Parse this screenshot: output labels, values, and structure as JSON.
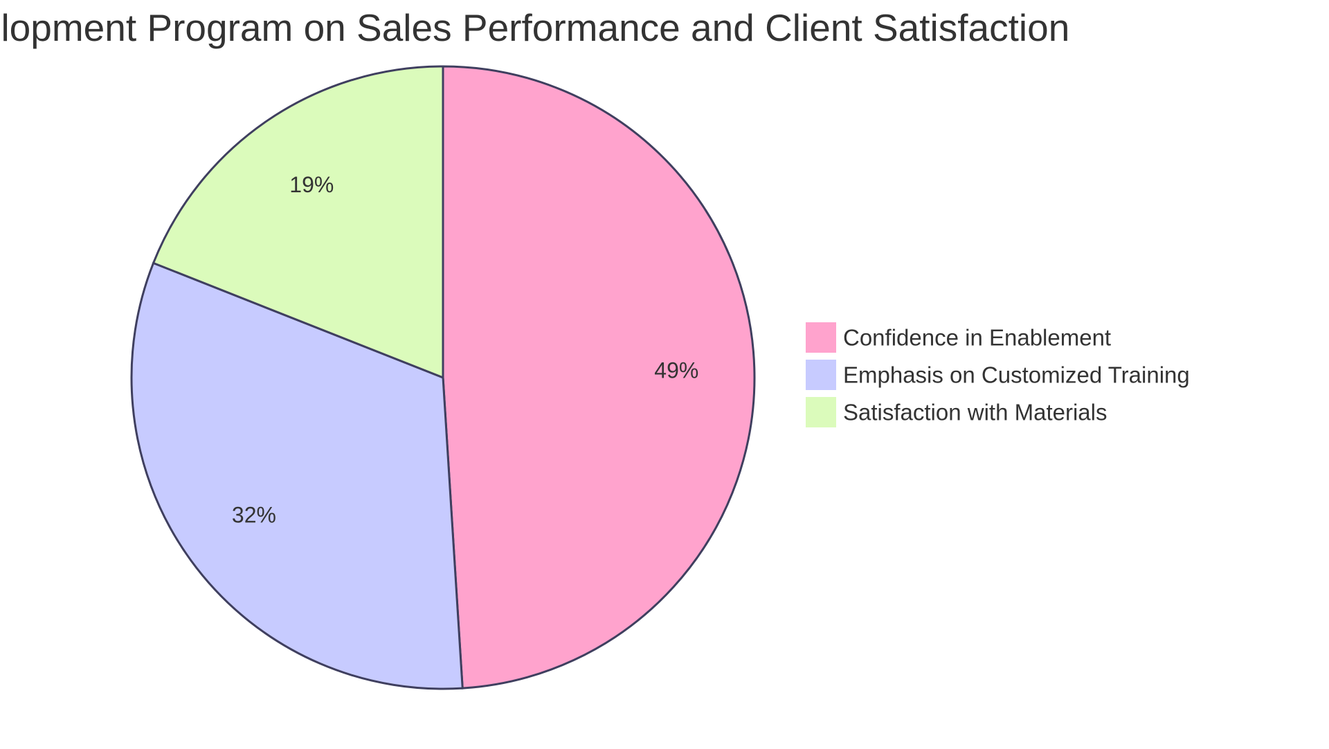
{
  "chart_data": {
    "type": "pie",
    "title": "Impact of Sales Development Program on Sales Performance and Client Satisfaction",
    "categories": [
      "Confidence in Enablement",
      "Emphasis on Customized Training",
      "Satisfaction with Materials"
    ],
    "values": [
      49,
      32,
      19
    ],
    "value_labels": [
      "49%",
      "32%",
      "19%"
    ],
    "colors": [
      "#ffa3cd",
      "#c7cbff",
      "#dbfbbb"
    ],
    "stroke_color": "#3f3f5f",
    "legend_position": "right"
  }
}
